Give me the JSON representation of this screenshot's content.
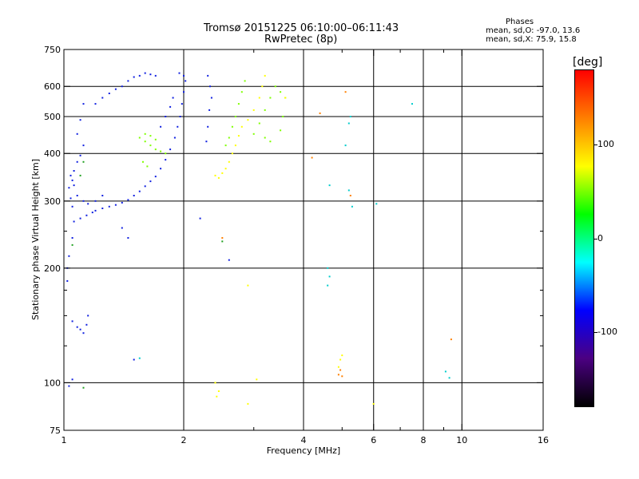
{
  "header": {
    "title_line1": "Tromsø 20151225 06:10:00–06:11:43",
    "title_line2": "RwPretec (8p)",
    "stats_heading": "Phases",
    "stats_line1": "mean, sd,O: -97.0, 13.6",
    "stats_line2": "mean, sd,X:  75.9, 15.8"
  },
  "colorbar": {
    "unit_label": "[deg]",
    "ticks": [
      {
        "value": 100,
        "label": "100"
      },
      {
        "value": 0,
        "label": "0"
      },
      {
        "value": -100,
        "label": "-100"
      }
    ],
    "range": [
      -180,
      180
    ],
    "stops": [
      "#000000",
      "#4b0082",
      "#0000ff",
      "#00ffff",
      "#00ff00",
      "#ffff00",
      "#ff7f00",
      "#ff0000"
    ]
  },
  "chart_data": {
    "type": "scatter",
    "xlabel": "Frequency [MHz]",
    "ylabel": "Stationary phase Virtual Height [km]",
    "xscale": "log",
    "yscale": "log",
    "xlim": [
      1,
      16
    ],
    "ylim": [
      75,
      750
    ],
    "x_ticks": [
      {
        "value": 1,
        "label": "1"
      },
      {
        "value": 2,
        "label": "2"
      },
      {
        "value": 4,
        "label": "4"
      },
      {
        "value": 6,
        "label": "6"
      },
      {
        "value": 8,
        "label": "8"
      },
      {
        "value": 10,
        "label": "10"
      },
      {
        "value": 16,
        "label": "16"
      }
    ],
    "x_minor": [
      3,
      5,
      7,
      9
    ],
    "x_grid": [
      2,
      4,
      6,
      8,
      10
    ],
    "y_ticks": [
      {
        "value": 75,
        "label": "75"
      },
      {
        "value": 100,
        "label": "100"
      },
      {
        "value": 200,
        "label": "200"
      },
      {
        "value": 300,
        "label": "300"
      },
      {
        "value": 400,
        "label": "400"
      },
      {
        "value": 500,
        "label": "500"
      },
      {
        "value": 600,
        "label": "600"
      },
      {
        "value": 750,
        "label": "750"
      }
    ],
    "y_minor": [
      125,
      150,
      175,
      250
    ],
    "y_grid": [
      100,
      200,
      300,
      400,
      500,
      600
    ],
    "grid": true,
    "series": [
      {
        "color": "#1020e0",
        "points": [
          [
            1.02,
            185
          ],
          [
            1.02,
            200
          ],
          [
            1.03,
            215
          ],
          [
            1.05,
            240
          ],
          [
            1.06,
            265
          ],
          [
            1.05,
            290
          ],
          [
            1.04,
            305
          ],
          [
            1.03,
            325
          ],
          [
            1.05,
            340
          ],
          [
            1.06,
            360
          ],
          [
            1.08,
            380
          ],
          [
            1.1,
            395
          ],
          [
            1.12,
            420
          ],
          [
            1.08,
            450
          ],
          [
            1.1,
            490
          ],
          [
            1.12,
            540
          ],
          [
            1.1,
            270
          ],
          [
            1.14,
            275
          ],
          [
            1.18,
            280
          ],
          [
            1.2,
            283
          ],
          [
            1.25,
            287
          ],
          [
            1.3,
            290
          ],
          [
            1.35,
            293
          ],
          [
            1.4,
            297
          ],
          [
            1.45,
            302
          ],
          [
            1.5,
            310
          ],
          [
            1.55,
            318
          ],
          [
            1.6,
            328
          ],
          [
            1.65,
            338
          ],
          [
            1.7,
            348
          ],
          [
            1.75,
            365
          ],
          [
            1.8,
            385
          ],
          [
            1.85,
            410
          ],
          [
            1.9,
            440
          ],
          [
            1.93,
            470
          ],
          [
            1.96,
            500
          ],
          [
            1.98,
            540
          ],
          [
            2.0,
            580
          ],
          [
            2.02,
            620
          ],
          [
            1.88,
            560
          ],
          [
            1.85,
            530
          ],
          [
            1.8,
            500
          ],
          [
            1.75,
            470
          ],
          [
            1.2,
            540
          ],
          [
            1.25,
            560
          ],
          [
            1.3,
            575
          ],
          [
            1.35,
            590
          ],
          [
            1.4,
            600
          ],
          [
            1.45,
            620
          ],
          [
            1.5,
            635
          ],
          [
            1.55,
            640
          ],
          [
            1.6,
            650
          ],
          [
            1.65,
            645
          ],
          [
            1.7,
            640
          ],
          [
            1.95,
            650
          ],
          [
            2.0,
            640
          ],
          [
            2.3,
            470
          ],
          [
            2.32,
            520
          ],
          [
            2.35,
            560
          ],
          [
            2.33,
            600
          ],
          [
            2.3,
            640
          ],
          [
            2.28,
            430
          ],
          [
            1.05,
            145
          ],
          [
            1.08,
            140
          ],
          [
            1.1,
            138
          ],
          [
            1.12,
            135
          ],
          [
            1.14,
            142
          ],
          [
            1.15,
            150
          ],
          [
            1.03,
            98
          ],
          [
            1.05,
            102
          ],
          [
            1.5,
            115
          ],
          [
            2.2,
            270
          ],
          [
            2.6,
            210
          ],
          [
            1.4,
            255
          ],
          [
            1.45,
            240
          ],
          [
            1.08,
            310
          ],
          [
            1.12,
            300
          ],
          [
            1.15,
            295
          ],
          [
            1.2,
            300
          ],
          [
            1.25,
            310
          ],
          [
            1.06,
            330
          ],
          [
            1.04,
            350
          ]
        ]
      },
      {
        "color": "#7fff00",
        "points": [
          [
            1.55,
            440
          ],
          [
            1.6,
            430
          ],
          [
            1.65,
            420
          ],
          [
            1.7,
            410
          ],
          [
            1.75,
            405
          ],
          [
            1.8,
            400
          ],
          [
            1.6,
            450
          ],
          [
            1.65,
            445
          ],
          [
            1.7,
            435
          ],
          [
            1.58,
            380
          ],
          [
            1.62,
            370
          ],
          [
            2.55,
            420
          ],
          [
            2.6,
            440
          ],
          [
            2.65,
            470
          ],
          [
            2.7,
            500
          ],
          [
            2.75,
            540
          ],
          [
            2.8,
            580
          ],
          [
            2.85,
            620
          ],
          [
            3.0,
            450
          ],
          [
            3.1,
            480
          ],
          [
            3.2,
            520
          ],
          [
            3.3,
            560
          ],
          [
            3.4,
            600
          ],
          [
            3.5,
            580
          ],
          [
            3.6,
            560
          ],
          [
            3.55,
            500
          ],
          [
            3.5,
            460
          ],
          [
            3.3,
            430
          ],
          [
            3.2,
            440
          ]
        ]
      },
      {
        "color": "#ffff00",
        "points": [
          [
            2.4,
            350
          ],
          [
            2.45,
            345
          ],
          [
            2.5,
            355
          ],
          [
            2.55,
            365
          ],
          [
            2.6,
            380
          ],
          [
            2.65,
            400
          ],
          [
            2.7,
            420
          ],
          [
            2.75,
            445
          ],
          [
            2.8,
            470
          ],
          [
            2.9,
            490
          ],
          [
            3.0,
            520
          ],
          [
            3.1,
            560
          ],
          [
            3.15,
            600
          ],
          [
            3.2,
            640
          ],
          [
            2.4,
            100
          ],
          [
            2.45,
            95
          ],
          [
            2.42,
            92
          ],
          [
            2.9,
            88
          ],
          [
            3.05,
            102
          ],
          [
            4.9,
            110
          ],
          [
            4.95,
            115
          ],
          [
            5.0,
            118
          ],
          [
            6.0,
            88
          ],
          [
            2.9,
            180
          ],
          [
            3.6,
            560
          ]
        ]
      },
      {
        "color": "#00cccc",
        "points": [
          [
            4.6,
            200
          ],
          [
            4.65,
            190
          ],
          [
            4.6,
            180
          ],
          [
            4.65,
            330
          ],
          [
            5.1,
            420
          ],
          [
            5.2,
            480
          ],
          [
            5.25,
            500
          ],
          [
            5.3,
            290
          ],
          [
            5.2,
            320
          ],
          [
            7.5,
            540
          ],
          [
            9.1,
            107
          ],
          [
            9.3,
            103
          ],
          [
            6.1,
            295
          ],
          [
            1.55,
            116
          ]
        ]
      },
      {
        "color": "#ff8000",
        "points": [
          [
            4.9,
            105
          ],
          [
            4.95,
            108
          ],
          [
            5.0,
            104
          ],
          [
            5.1,
            580
          ],
          [
            4.2,
            390
          ],
          [
            4.4,
            510
          ],
          [
            2.5,
            240
          ],
          [
            9.4,
            130
          ],
          [
            5.25,
            310
          ]
        ]
      },
      {
        "color": "#20a020",
        "points": [
          [
            1.05,
            230
          ],
          [
            1.12,
            97
          ],
          [
            1.1,
            350
          ],
          [
            2.5,
            235
          ],
          [
            1.12,
            380
          ]
        ]
      }
    ]
  }
}
